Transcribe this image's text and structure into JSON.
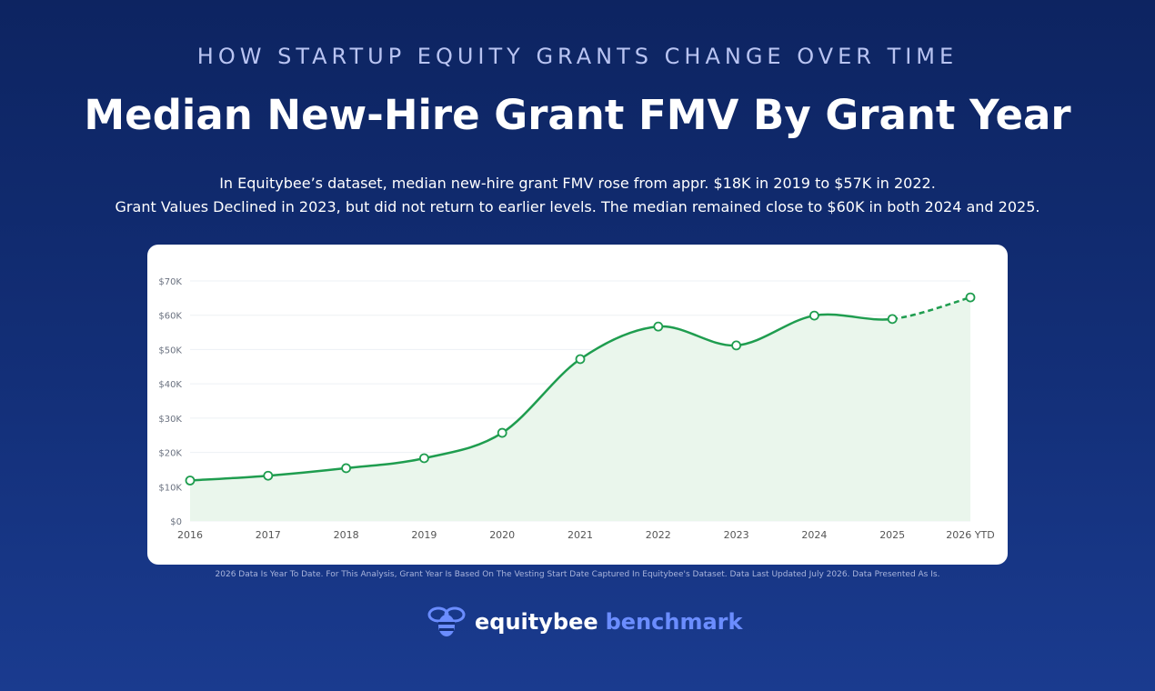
{
  "header": {
    "kicker": "HOW STARTUP EQUITY GRANTS CHANGE OVER TIME"
  },
  "chart_data": {
    "type": "line",
    "title": "Median New-Hire Grant FMV By Grant Year",
    "subtitle": [
      "In Equitybee’s dataset, median new-hire grant FMV rose from appr. $18K in 2019 to $57K in 2022.",
      "Grant Values Declined in 2023, but did not return to earlier levels. The median remained close to $60K in both 2024 and 2025."
    ],
    "categories": [
      "2016",
      "2017",
      "2018",
      "2019",
      "2020",
      "2021",
      "2022",
      "2023",
      "2024",
      "2025",
      "2026 YTD"
    ],
    "values": [
      11800,
      13200,
      15400,
      18300,
      25700,
      47200,
      56700,
      51200,
      59900,
      58900,
      65200
    ],
    "color": "#1f9d4f",
    "area_color": "#eaf6ec",
    "smooth": true,
    "markers": true,
    "ytd_dashed": true,
    "grid": true,
    "ylim": [
      0,
      70000
    ],
    "yticks": [
      {
        "value": 0,
        "label": "$0"
      },
      {
        "value": 10000,
        "label": "$10K"
      },
      {
        "value": 20000,
        "label": "$20K"
      },
      {
        "value": 30000,
        "label": "$30K"
      },
      {
        "value": 40000,
        "label": "$40K"
      },
      {
        "value": 50000,
        "label": "$50K"
      },
      {
        "value": 60000,
        "label": "$60K"
      },
      {
        "value": 70000,
        "label": "$70K"
      }
    ]
  },
  "footnote": "2026 Data Is Year To Date. For This Analysis, Grant Year Is Based On The Vesting Start Date Captured In Equitybee's Dataset. Data Last Updated July 2026. Data Presented As Is.",
  "logo": {
    "brand": "equitybee",
    "product": "benchmark"
  }
}
